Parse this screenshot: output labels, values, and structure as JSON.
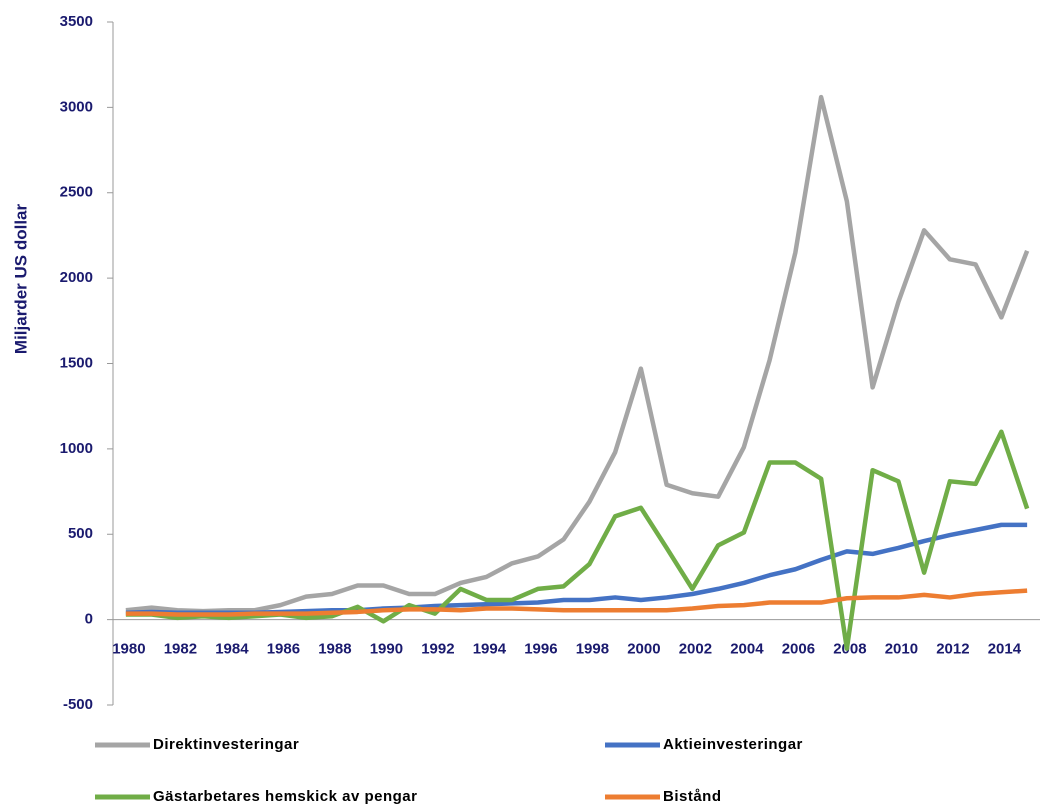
{
  "chart_data": {
    "type": "line",
    "y_axis_label": "Miljarder US dollar",
    "categories": [
      "1980",
      null,
      "1982",
      null,
      "1984",
      null,
      "1986",
      null,
      "1988",
      null,
      "1990",
      null,
      "1992",
      null,
      "1994",
      null,
      "1996",
      null,
      "1998",
      null,
      "2000",
      null,
      "2002",
      null,
      "2004",
      null,
      "2006",
      null,
      "2008",
      null,
      "2010",
      null,
      "2012",
      null,
      "2014",
      null
    ],
    "series": [
      {
        "name": "Direktinvesteringar",
        "color": "#a5a5a5",
        "values": [
          55,
          70,
          55,
          50,
          55,
          55,
          85,
          135,
          150,
          200,
          200,
          150,
          150,
          215,
          250,
          330,
          370,
          470,
          690,
          980,
          1470,
          790,
          740,
          720,
          1010,
          1520,
          2150,
          3060,
          2450,
          1360,
          1860,
          2280,
          2110,
          2080,
          1770,
          2160
        ]
      },
      {
        "name": "Aktieinvesteringar",
        "color": "#4472c4",
        "values": [
          40,
          45,
          40,
          40,
          40,
          40,
          45,
          50,
          55,
          55,
          65,
          70,
          80,
          85,
          90,
          95,
          100,
          115,
          115,
          130,
          115,
          130,
          150,
          180,
          215,
          260,
          295,
          350,
          400,
          385,
          420,
          460,
          495,
          525,
          555,
          555
        ]
      },
      {
        "name": "Gästarbetares hemskick av pengar",
        "color": "#70ad47",
        "values": [
          30,
          30,
          10,
          20,
          10,
          20,
          30,
          10,
          20,
          75,
          -10,
          85,
          35,
          180,
          115,
          115,
          180,
          195,
          325,
          605,
          655,
          420,
          180,
          435,
          510,
          920,
          920,
          825,
          -170,
          875,
          810,
          275,
          810,
          795,
          1100,
          650
        ]
      },
      {
        "name": "Bistånd",
        "color": "#ed7d31",
        "values": [
          35,
          35,
          30,
          30,
          30,
          35,
          35,
          35,
          40,
          45,
          55,
          60,
          60,
          55,
          65,
          65,
          60,
          55,
          55,
          55,
          55,
          55,
          65,
          80,
          85,
          100,
          100,
          100,
          125,
          130,
          130,
          145,
          130,
          150,
          160,
          170
        ]
      }
    ],
    "ylim": [
      -500,
      3500
    ],
    "yticks": [
      -500,
      0,
      500,
      1000,
      1500,
      2000,
      2500,
      3000,
      3500
    ],
    "grid": false,
    "legend": "bottom"
  }
}
